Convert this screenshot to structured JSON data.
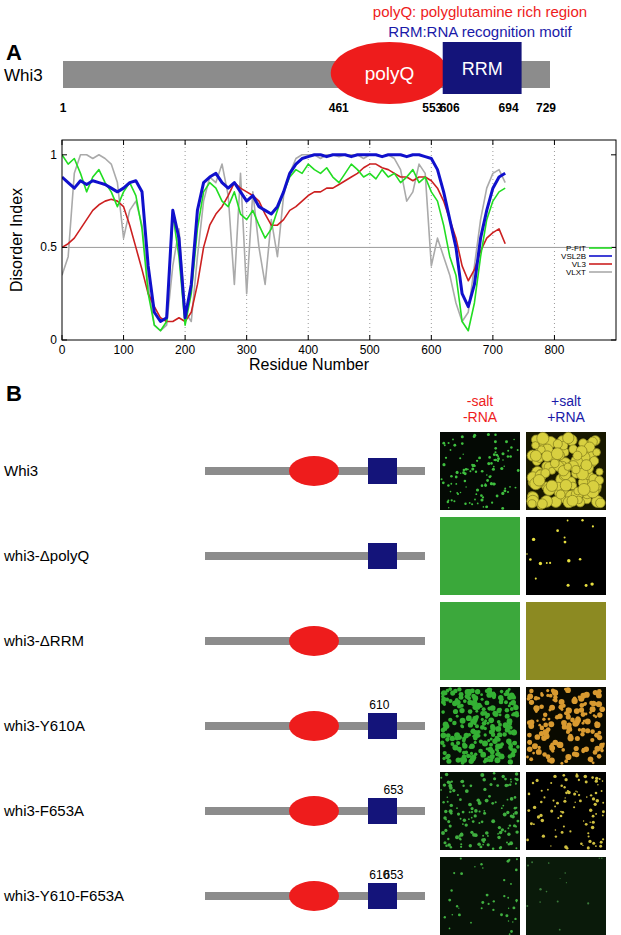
{
  "key_text": [
    {
      "text": "polyQ: polyglutamine rich region",
      "color": "#ee1c1c"
    },
    {
      "text": "RRM:RNA recognition motif",
      "color": "#1a1aa8"
    }
  ],
  "panel_a": {
    "label": "A",
    "protein": "Whi3",
    "start": 1,
    "end": 729,
    "domains": [
      {
        "label": "polyQ",
        "start": 461,
        "end": 553,
        "color": "#ee1c1c"
      },
      {
        "label": "RRM",
        "start": 606,
        "end": 694,
        "color": "#14147a"
      }
    ]
  },
  "chart_data": {
    "type": "line",
    "x_label": "Residue Number",
    "y_label": "Disorder Index",
    "x": [
      0,
      10,
      20,
      30,
      40,
      50,
      60,
      70,
      80,
      90,
      100,
      110,
      120,
      130,
      140,
      150,
      160,
      170,
      180,
      190,
      200,
      210,
      220,
      230,
      240,
      250,
      260,
      270,
      280,
      290,
      300,
      310,
      320,
      330,
      340,
      350,
      360,
      370,
      380,
      390,
      400,
      410,
      420,
      430,
      440,
      450,
      460,
      470,
      480,
      490,
      500,
      510,
      520,
      530,
      540,
      550,
      560,
      570,
      580,
      590,
      600,
      610,
      620,
      630,
      640,
      650,
      660,
      670,
      680,
      690,
      700,
      710,
      720
    ],
    "series": [
      {
        "name": "P-FIT",
        "color": "#22dd22",
        "values": [
          1.0,
          0.95,
          0.98,
          0.9,
          0.8,
          0.88,
          0.92,
          0.85,
          0.8,
          0.72,
          0.8,
          0.85,
          0.78,
          0.6,
          0.25,
          0.08,
          0.05,
          0.1,
          0.68,
          0.45,
          0.08,
          0.25,
          0.6,
          0.8,
          0.85,
          0.82,
          0.75,
          0.72,
          0.8,
          0.68,
          0.65,
          0.7,
          0.62,
          0.55,
          0.6,
          0.7,
          0.8,
          0.88,
          0.92,
          0.9,
          0.95,
          0.92,
          0.9,
          0.93,
          0.88,
          0.85,
          0.9,
          0.95,
          0.92,
          0.88,
          0.9,
          0.87,
          0.92,
          0.88,
          0.9,
          0.85,
          0.88,
          0.92,
          0.85,
          0.88,
          0.8,
          0.75,
          0.62,
          0.45,
          0.35,
          0.1,
          0.05,
          0.2,
          0.45,
          0.65,
          0.75,
          0.8,
          0.82
        ]
      },
      {
        "name": "VSL2B",
        "color": "#1010cc",
        "values": [
          0.88,
          0.85,
          0.82,
          0.86,
          0.84,
          0.86,
          0.85,
          0.84,
          0.82,
          0.8,
          0.82,
          0.85,
          0.86,
          0.8,
          0.4,
          0.15,
          0.1,
          0.12,
          0.7,
          0.55,
          0.12,
          0.3,
          0.7,
          0.85,
          0.88,
          0.9,
          0.85,
          0.82,
          0.85,
          0.8,
          0.75,
          0.78,
          0.72,
          0.7,
          0.68,
          0.72,
          0.8,
          0.9,
          0.95,
          0.98,
          0.99,
          1,
          1,
          0.99,
          1,
          1,
          1,
          0.99,
          1,
          1,
          1,
          1,
          0.99,
          1,
          1,
          1,
          0.99,
          1,
          1,
          0.99,
          0.98,
          0.92,
          0.8,
          0.65,
          0.5,
          0.25,
          0.18,
          0.3,
          0.55,
          0.7,
          0.82,
          0.88,
          0.9
        ]
      },
      {
        "name": "VL3",
        "color": "#cc2020",
        "values": [
          0.5,
          0.52,
          0.55,
          0.6,
          0.65,
          0.7,
          0.73,
          0.75,
          0.76,
          0.75,
          0.72,
          0.62,
          0.5,
          0.38,
          0.25,
          0.18,
          0.12,
          0.1,
          0.1,
          0.12,
          0.1,
          0.15,
          0.3,
          0.5,
          0.62,
          0.68,
          0.72,
          0.78,
          0.85,
          0.82,
          0.8,
          0.78,
          0.75,
          0.68,
          0.62,
          0.62,
          0.65,
          0.7,
          0.72,
          0.75,
          0.78,
          0.8,
          0.8,
          0.82,
          0.82,
          0.84,
          0.86,
          0.88,
          0.9,
          0.93,
          0.95,
          0.95,
          0.93,
          0.92,
          0.9,
          0.88,
          0.88,
          0.86,
          0.88,
          0.88,
          0.86,
          0.82,
          0.75,
          0.65,
          0.55,
          0.4,
          0.32,
          0.38,
          0.48,
          0.55,
          0.58,
          0.6,
          0.52
        ]
      },
      {
        "name": "VLXT",
        "color": "#aaaaaa",
        "values": [
          0.35,
          0.45,
          0.9,
          1.0,
          1.0,
          0.98,
          1.0,
          0.98,
          0.95,
          0.85,
          0.55,
          0.7,
          0.75,
          0.62,
          0.3,
          0.08,
          0.05,
          0.08,
          0.4,
          0.6,
          0.15,
          0.1,
          0.45,
          0.75,
          0.88,
          0.85,
          0.95,
          0.78,
          0.3,
          0.9,
          0.25,
          0.8,
          0.5,
          0.3,
          0.65,
          0.45,
          0.78,
          0.9,
          0.98,
          1.0,
          1.0,
          1.0,
          0.98,
          1.0,
          1.0,
          0.99,
          1.0,
          1.0,
          1.0,
          0.98,
          1.0,
          1.0,
          0.99,
          1.0,
          0.98,
          0.92,
          0.75,
          0.8,
          0.95,
          0.9,
          0.4,
          0.55,
          0.45,
          0.35,
          0.2,
          0.1,
          0.15,
          0.4,
          0.65,
          0.82,
          0.9,
          0.92,
          0.85
        ]
      }
    ],
    "xlim": [
      0,
      900
    ],
    "xticks": [
      0,
      100,
      200,
      300,
      400,
      500,
      600,
      700,
      800
    ],
    "ylim": [
      0,
      1.08
    ],
    "yticks": [
      0,
      0.5,
      1
    ],
    "threshold": 0.5,
    "grid": true,
    "legend": "east"
  },
  "panel_b": {
    "label": "B",
    "columns": [
      {
        "lines": [
          "-salt",
          "-RNA"
        ],
        "color": "#ee1c1c"
      },
      {
        "lines": [
          "+salt",
          "+RNA"
        ],
        "color": "#1a1aa8"
      }
    ],
    "rows": [
      {
        "label": "Whi3",
        "parts": [
          0,
          1
        ],
        "mutations": []
      },
      {
        "label": "whi3-ΔpolyQ",
        "parts": [
          1
        ],
        "mutations": []
      },
      {
        "label": "whi3-ΔRRM",
        "parts": [
          0
        ],
        "mutations": []
      },
      {
        "label": "whi3-Y610A",
        "parts": [
          0,
          1
        ],
        "mutations": [
          610
        ]
      },
      {
        "label": "whi3-F653A",
        "parts": [
          0,
          1
        ],
        "mutations": [
          653
        ]
      },
      {
        "label": "whi3-Y610-F653A",
        "parts": [
          0,
          1
        ],
        "mutations": [
          610,
          653
        ]
      }
    ]
  }
}
